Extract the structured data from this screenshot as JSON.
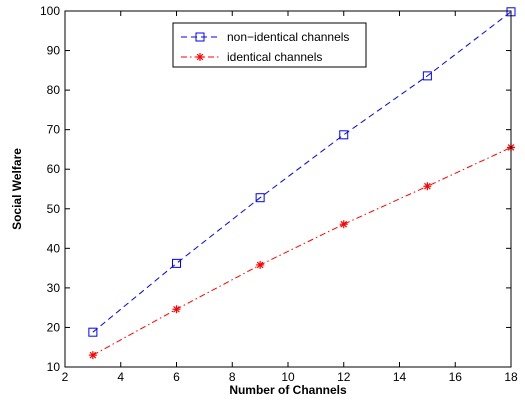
{
  "chart_data": {
    "type": "line",
    "xlabel": "Number of Channels",
    "ylabel": "Social Welfare",
    "xlim": [
      2,
      18
    ],
    "ylim": [
      10,
      100
    ],
    "xticks": [
      2,
      4,
      6,
      8,
      10,
      12,
      14,
      16,
      18
    ],
    "yticks": [
      10,
      20,
      30,
      40,
      50,
      60,
      70,
      80,
      90,
      100
    ],
    "grid": false,
    "legend_position": "top-center",
    "x": [
      3,
      6,
      9,
      12,
      15,
      18
    ],
    "series": [
      {
        "name": "non−identical channels",
        "values": [
          18.8,
          36.2,
          52.8,
          68.7,
          83.6,
          99.8
        ],
        "color": "#0000ff",
        "line_style": "dashed",
        "marker": "square"
      },
      {
        "name": "identical channels",
        "values": [
          13.0,
          24.6,
          35.8,
          46.1,
          55.7,
          65.5
        ],
        "color": "#ff0000",
        "line_style": "dash-dot",
        "marker": "star"
      }
    ]
  }
}
